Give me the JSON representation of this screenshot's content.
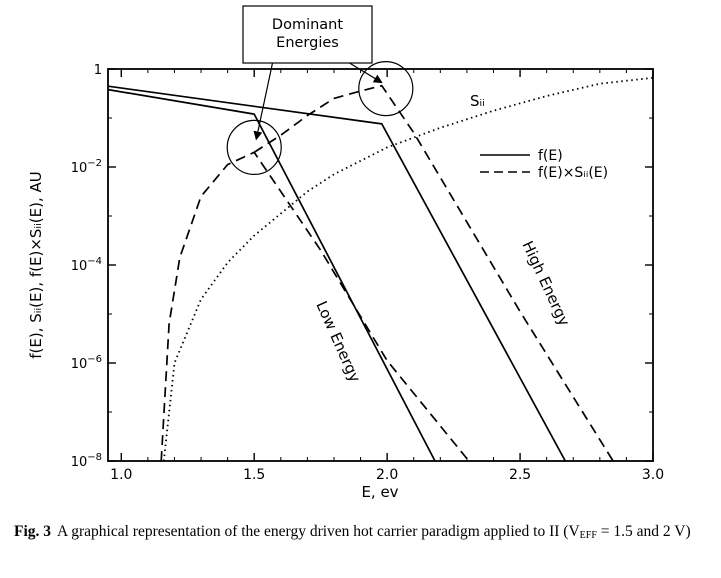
{
  "chart_data": {
    "type": "line",
    "xlabel": "E, ev",
    "ylabel": "f(E), Sᵢᵢ(E), f(E)×Sᵢᵢ(E), AU",
    "xlim": [
      0.95,
      3.0
    ],
    "ylim_log10": [
      -8,
      0
    ],
    "y_scale": "log",
    "x_ticks": [
      1.0,
      1.5,
      2.0,
      2.5,
      3.0
    ],
    "x_tick_labels": [
      "1.0",
      "1.5",
      "2.0",
      "2.5",
      "3.0"
    ],
    "y_ticks_log10": [
      0,
      -2,
      -4,
      -6,
      -8
    ],
    "y_tick_labels": [
      {
        "base": "1",
        "exp": ""
      },
      {
        "base": "10",
        "exp": "−2"
      },
      {
        "base": "10",
        "exp": "−4"
      },
      {
        "base": "10",
        "exp": "−6"
      },
      {
        "base": "10",
        "exp": "−8"
      }
    ],
    "legend": {
      "placement": "right",
      "entries": [
        {
          "label": "f(E)",
          "style": "solid"
        },
        {
          "label": "f(E)×Sᵢᵢ(E)",
          "style": "dashed"
        }
      ]
    },
    "series": [
      {
        "name": "f(E)",
        "style": "solid",
        "log10_points": [
          [
            0.95,
            -0.42
          ],
          [
            1.5,
            -0.92
          ],
          [
            2.18,
            -8.0
          ]
        ]
      },
      {
        "name": "f(E)",
        "style": "solid",
        "log10_points": [
          [
            0.95,
            -0.35
          ],
          [
            1.98,
            -1.12
          ],
          [
            2.67,
            -8.0
          ]
        ]
      },
      {
        "name": "f(E)×Sᵢᵢ(E)",
        "style": "dashed",
        "log10_points": [
          [
            1.15,
            -8.0
          ],
          [
            1.18,
            -5.2
          ],
          [
            1.22,
            -3.85
          ],
          [
            1.3,
            -2.6
          ],
          [
            1.4,
            -1.95
          ],
          [
            1.5,
            -1.7
          ],
          [
            1.75,
            -3.7
          ],
          [
            2.0,
            -5.95
          ],
          [
            2.3,
            -7.95
          ]
        ]
      },
      {
        "name": "f(E)×Sᵢᵢ(E)",
        "style": "dashed",
        "log10_points": [
          [
            1.5,
            -1.7
          ],
          [
            1.6,
            -1.35
          ],
          [
            1.7,
            -0.95
          ],
          [
            1.8,
            -0.6
          ],
          [
            1.9,
            -0.45
          ],
          [
            1.98,
            -0.34
          ],
          [
            2.1,
            -1.3
          ],
          [
            2.5,
            -4.95
          ],
          [
            2.85,
            -8.0
          ]
        ]
      },
      {
        "name": "Sᵢᵢ",
        "style": "dotted",
        "log10_points": [
          [
            1.16,
            -8.0
          ],
          [
            1.2,
            -6.0
          ],
          [
            1.3,
            -4.7
          ],
          [
            1.4,
            -3.95
          ],
          [
            1.5,
            -3.4
          ],
          [
            1.6,
            -2.95
          ],
          [
            1.7,
            -2.5
          ],
          [
            1.8,
            -2.15
          ],
          [
            2.0,
            -1.6
          ],
          [
            2.2,
            -1.2
          ],
          [
            2.4,
            -0.85
          ],
          [
            2.6,
            -0.55
          ],
          [
            2.8,
            -0.3
          ],
          [
            3.0,
            -0.18
          ]
        ]
      }
    ],
    "curve_labels": [
      {
        "text": "Sᵢᵢ",
        "series": "Sᵢᵢ"
      },
      {
        "text": "Low Energy",
        "series": "low"
      },
      {
        "text": "High Energy",
        "series": "high"
      }
    ],
    "annotation": {
      "lines": [
        "Dominant",
        "Energies"
      ],
      "circles": [
        {
          "x": 1.5,
          "y_log10": -1.6
        },
        {
          "x": 1.995,
          "y_log10": -0.4
        }
      ]
    }
  },
  "caption": {
    "fig": "Fig. 3",
    "text_before_sub": "A graphical representation of the energy driven hot carrier paradigm applied to II (V",
    "sub": "EFF",
    "text_after_sub": " = 1.5 and 2 V)"
  }
}
